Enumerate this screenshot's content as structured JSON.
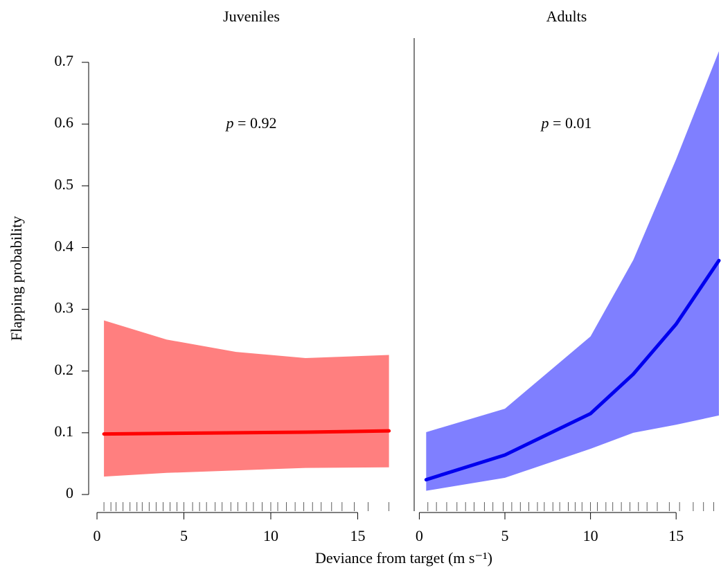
{
  "chart_data": [
    {
      "type": "line",
      "title": "Juveniles",
      "annotation_symbol": "p",
      "annotation": "= 0.92",
      "y_label": "Flapping probability",
      "x_label": "Deviance from target (m s⁻¹)",
      "xlim": [
        -0.48,
        18.25
      ],
      "xticks": [
        0,
        5,
        10,
        15
      ],
      "ylim": [
        0,
        0.7
      ],
      "yticks": [
        0.0,
        0.1,
        0.2,
        0.3,
        0.4,
        0.5,
        0.6,
        0.7
      ],
      "x": [
        0.4,
        4,
        8,
        12,
        16.8
      ],
      "series": [
        {
          "color": "#ff0000",
          "band_color": "#ff7f7f",
          "values": [
            0.098,
            0.099,
            0.1,
            0.101,
            0.103
          ],
          "lower": [
            0.029,
            0.035,
            0.039,
            0.043,
            0.044
          ],
          "upper": [
            0.282,
            0.251,
            0.231,
            0.221,
            0.226
          ]
        }
      ],
      "rug": [
        0.4,
        0.8,
        1.1,
        1.5,
        1.9,
        2.3,
        2.6,
        3.0,
        3.4,
        3.8,
        4.2,
        4.6,
        5.0,
        5.5,
        5.9,
        6.3,
        6.8,
        7.2,
        7.7,
        8.1,
        8.6,
        9.0,
        9.5,
        10.0,
        10.4,
        10.9,
        11.4,
        11.9,
        12.4,
        12.9,
        13.5,
        14.1,
        14.8,
        15.6,
        16.8
      ]
    },
    {
      "type": "line",
      "title": "Adults",
      "annotation_symbol": "p",
      "annotation": "= 0.01",
      "xlim": [
        -0.3,
        17.5
      ],
      "xticks": [
        0,
        5,
        10,
        15
      ],
      "x": [
        0.4,
        5,
        10,
        12.5,
        15,
        17.5
      ],
      "series": [
        {
          "color": "#0000ee",
          "band_color": "#7f7fff",
          "values": [
            0.024,
            0.064,
            0.131,
            0.195,
            0.276,
            0.379
          ],
          "lower": [
            0.006,
            0.027,
            0.074,
            0.1,
            0.113,
            0.128
          ],
          "upper": [
            0.101,
            0.139,
            0.256,
            0.38,
            0.543,
            0.718
          ]
        }
      ],
      "rug": [
        0.5,
        1.0,
        1.6,
        2.2,
        2.7,
        3.2,
        3.8,
        4.3,
        4.9,
        5.4,
        5.9,
        6.4,
        6.9,
        7.3,
        7.8,
        8.2,
        8.7,
        9.1,
        9.5,
        10.0,
        10.4,
        10.9,
        11.3,
        11.8,
        12.3,
        12.8,
        13.3,
        13.9,
        14.6,
        15.2,
        16.0,
        16.6,
        17.2
      ]
    }
  ]
}
